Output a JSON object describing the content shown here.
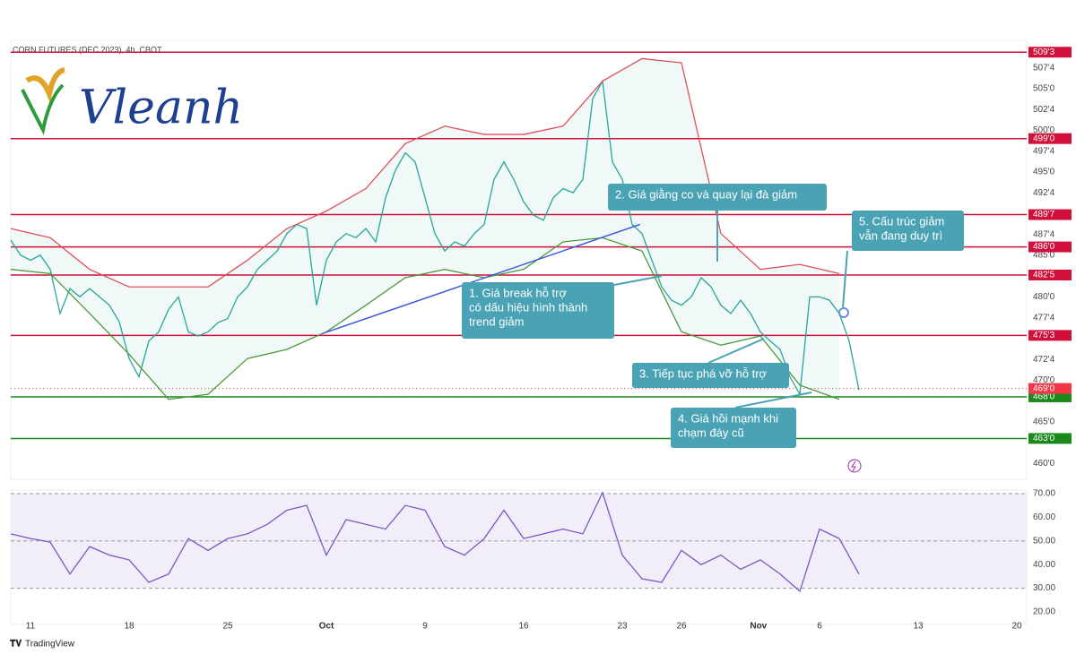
{
  "logo": "Vleanh",
  "footer": "TradingView",
  "chart_data": [
    {
      "type": "line",
      "title": "CORN FUTURES (DEC 2023), 4h, CBOT",
      "xlim": [
        0,
        51.5
      ],
      "ylim": [
        458.1,
        510.8
      ],
      "yticks": [
        {
          "value": 507.5,
          "label": "507'4"
        },
        {
          "value": 505,
          "label": "505'0"
        },
        {
          "value": 502.5,
          "label": "502'4"
        },
        {
          "value": 500,
          "label": "500'0"
        },
        {
          "value": 497.5,
          "label": "497'4"
        },
        {
          "value": 495,
          "label": "495'0"
        },
        {
          "value": 492.5,
          "label": "492'4"
        },
        {
          "value": 487.5,
          "label": "487'4"
        },
        {
          "value": 485,
          "label": "485'0"
        },
        {
          "value": 480,
          "label": "480'0"
        },
        {
          "value": 477.5,
          "label": "477'4"
        },
        {
          "value": 472.5,
          "label": "472'4"
        },
        {
          "value": 470,
          "label": "470'0"
        },
        {
          "value": 465,
          "label": "465'0"
        },
        {
          "value": 460,
          "label": "460'0"
        }
      ],
      "series": [
        {
          "color": "#26a69a",
          "x": [
            0,
            0.5,
            1,
            1.5,
            2,
            2.5,
            3,
            3.5,
            4,
            4.5,
            5,
            5.5,
            6,
            6.5,
            7,
            7.5,
            8,
            8.5,
            9,
            9.5,
            10,
            10.5,
            11,
            11.5,
            12,
            12.5,
            13,
            13.5,
            14,
            14.5,
            15,
            15.5,
            16,
            16.5,
            17,
            17.5,
            18,
            18.5,
            19,
            19.5,
            20,
            20.5,
            21,
            21.5,
            22,
            22.5,
            23,
            23.5,
            24,
            24.5,
            25,
            25.5,
            26,
            26.5,
            27,
            27.5,
            28,
            28.5,
            29,
            29.5,
            30,
            30.5,
            31,
            31.5,
            32,
            32.5,
            33,
            33.5,
            34,
            34.5,
            35,
            35.5,
            36,
            36.5,
            37,
            37.5,
            38,
            38.5,
            39,
            39.5,
            40,
            40.5,
            41,
            41.5,
            42,
            42.5,
            43
          ],
          "values": [
            486.8,
            485,
            484.4,
            485,
            483.3,
            478,
            481,
            480,
            481,
            480,
            479,
            477,
            472.6,
            470.4,
            474.7,
            475.8,
            478.5,
            480,
            475.8,
            475.3,
            475.8,
            476.9,
            477.4,
            480,
            481.2,
            483.3,
            484.4,
            485.5,
            487.6,
            488.7,
            488.2,
            479,
            484.4,
            486.6,
            487.6,
            487.1,
            488.2,
            486.6,
            491.9,
            495.2,
            497.3,
            496.2,
            491.9,
            487.6,
            485.5,
            486.6,
            486.1,
            487.6,
            488.7,
            494.1,
            496.2,
            494.1,
            491.4,
            489.8,
            489.2,
            491.9,
            493,
            492.5,
            494.1,
            503.8,
            505.9,
            496.2,
            494.1,
            488.7,
            487.6,
            484.4,
            481.2,
            479.6,
            479,
            480,
            482.3,
            481.2,
            479,
            478,
            479.6,
            478,
            475.8,
            474.7,
            473.7,
            470.4,
            468.3,
            480,
            480,
            479.6,
            478,
            474.7,
            468.8
          ]
        },
        {
          "color": "#e0505a",
          "x": [
            0,
            2,
            4,
            6,
            8,
            10,
            12,
            14,
            16,
            18,
            20,
            22,
            24,
            26,
            28,
            30,
            32,
            34,
            36,
            38,
            40,
            42
          ],
          "values": [
            488.2,
            487.1,
            483.3,
            481.2,
            481.2,
            481.2,
            484.4,
            488.2,
            490.3,
            493,
            498.4,
            500.5,
            499.5,
            499.5,
            500.5,
            505.9,
            508.6,
            508.1,
            487.6,
            483.3,
            483.9,
            482.8
          ]
        },
        {
          "color": "#4a9a3a",
          "x": [
            0,
            2,
            4,
            6,
            8,
            10,
            12,
            14,
            16,
            18,
            20,
            22,
            24,
            26,
            28,
            30,
            32,
            34,
            36,
            38,
            40,
            42
          ],
          "values": [
            483.3,
            482.8,
            478,
            473.1,
            467.7,
            468.3,
            472.6,
            473.7,
            475.8,
            479,
            482.3,
            483.3,
            482.3,
            483.3,
            486.6,
            487.1,
            485.5,
            475.8,
            474.2,
            475.3,
            469.4,
            467.7
          ]
        }
      ],
      "levels": [
        {
          "value": 509.375,
          "label": "509'3",
          "color": "#d0103a"
        },
        {
          "value": 499,
          "label": "499'0",
          "color": "#d0103a"
        },
        {
          "value": 489.875,
          "label": "489'7",
          "color": "#d0103a"
        },
        {
          "value": 486,
          "label": "486'0",
          "color": "#d0103a"
        },
        {
          "value": 482.625,
          "label": "482'5",
          "color": "#d0103a"
        },
        {
          "value": 475.375,
          "label": "475'3",
          "color": "#d0103a"
        },
        {
          "value": 468,
          "label": "468'0",
          "color": "#1b8a1b"
        },
        {
          "value": 463,
          "label": "463'0",
          "color": "#1b8a1b"
        }
      ],
      "last_price": {
        "value": 469,
        "label": "469'0",
        "color": "#f23645"
      },
      "trendline": {
        "x": [
          15.8,
          31.9
        ],
        "y": [
          475.6,
          488.7
        ],
        "color": "#3b5bdb"
      },
      "annotations": [
        {
          "lines": [
            "1. Giá break hỗ trợ",
            "có dấu hiệu hình thành",
            "trend giảm"
          ]
        },
        {
          "lines": [
            "2. Giá giằng co và quay lại đà giảm"
          ]
        },
        {
          "lines": [
            "3. Tiếp tục phá vỡ hỗ trợ"
          ]
        },
        {
          "lines": [
            "4. Giá hồi mạnh khi",
            "chạm đáy cũ"
          ]
        },
        {
          "lines": [
            "5. Cấu trúc giảm",
            "vẫn đang duy trì"
          ]
        }
      ]
    },
    {
      "type": "line",
      "xlim": [
        0,
        51.5
      ],
      "ylim": [
        14.7,
        71.5
      ],
      "xticks": [
        {
          "value": 1,
          "label": "11"
        },
        {
          "value": 6,
          "label": "18"
        },
        {
          "value": 11,
          "label": "25"
        },
        {
          "value": 16,
          "label": "Oct"
        },
        {
          "value": 21,
          "label": "9"
        },
        {
          "value": 26,
          "label": "16"
        },
        {
          "value": 31,
          "label": "23"
        },
        {
          "value": 34,
          "label": "26"
        },
        {
          "value": 37.9,
          "label": "Nov"
        },
        {
          "value": 41,
          "label": "6"
        },
        {
          "value": 46,
          "label": "13"
        },
        {
          "value": 51,
          "label": "20"
        }
      ],
      "yticks": [
        {
          "value": 70,
          "label": "70.00"
        },
        {
          "value": 60,
          "label": "60.00"
        },
        {
          "value": 50,
          "label": "50.00"
        },
        {
          "value": 40,
          "label": "40.00"
        },
        {
          "value": 30,
          "label": "30.00"
        },
        {
          "value": 20,
          "label": "20.00"
        }
      ],
      "band": [
        30,
        70
      ],
      "hlines": [
        70,
        50,
        30
      ],
      "series": [
        {
          "color": "#7e57c2",
          "x": [
            0,
            1,
            2,
            3,
            4,
            5,
            6,
            7,
            8,
            9,
            10,
            11,
            12,
            13,
            14,
            15,
            16,
            17,
            18,
            19,
            20,
            21,
            22,
            23,
            24,
            25,
            26,
            27,
            28,
            29,
            30,
            31,
            32,
            33,
            34,
            35,
            36,
            37,
            38,
            39,
            40,
            41,
            42,
            43
          ],
          "values": [
            53,
            51,
            49.5,
            36,
            47.6,
            44,
            42,
            32.5,
            36,
            51,
            46,
            51,
            53,
            57,
            63,
            65,
            44,
            59,
            57,
            55,
            65,
            63,
            47.6,
            44,
            51,
            63,
            51,
            53,
            55,
            53,
            70.4,
            44,
            34,
            32.5,
            46,
            40,
            44,
            38,
            42,
            36,
            28.7,
            55,
            51,
            36
          ]
        }
      ]
    }
  ]
}
